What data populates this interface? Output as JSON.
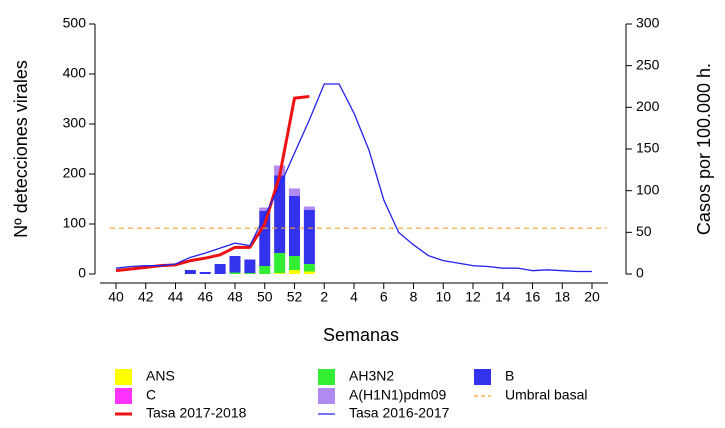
{
  "chart_data": {
    "type": "bar",
    "stacked": true,
    "xlabel": "Semanas",
    "ylabel": "Nº detecciones virales",
    "y2label": "Casos por 100.000 h.",
    "categories": [
      "40",
      null,
      "42",
      null,
      "44",
      null,
      "46",
      null,
      "48",
      null,
      "50",
      null,
      "52",
      null,
      "2",
      null,
      "4",
      null,
      "6",
      null,
      "8",
      null,
      "10",
      null,
      "12",
      null,
      "14",
      null,
      "16",
      null,
      "18",
      null,
      "20"
    ],
    "ylim": [
      0,
      500
    ],
    "yticks": [
      0,
      100,
      200,
      300,
      400,
      500
    ],
    "y2lim": [
      0,
      300
    ],
    "y2ticks": [
      0,
      50,
      100,
      150,
      200,
      250,
      300
    ],
    "series": [
      {
        "name": "ANS",
        "type": "bar",
        "color": "#ffff00",
        "values": [
          null,
          null,
          null,
          null,
          null,
          0,
          0,
          0,
          0,
          0,
          0,
          2,
          8,
          5,
          null,
          null,
          null,
          null,
          null,
          null,
          null,
          null,
          null,
          null,
          null,
          null,
          null,
          null,
          null,
          null,
          null,
          null,
          null
        ]
      },
      {
        "name": "C",
        "type": "bar",
        "color": "#ff33ff",
        "values": [
          null,
          null,
          null,
          null,
          null,
          0,
          0,
          0,
          0,
          0,
          0,
          0,
          0,
          0,
          null,
          null,
          null,
          null,
          null,
          null,
          null,
          null,
          null,
          null,
          null,
          null,
          null,
          null,
          null,
          null,
          null,
          null,
          null
        ]
      },
      {
        "name": "AH3N2",
        "type": "bar",
        "color": "#33ee33",
        "values": [
          null,
          null,
          null,
          null,
          null,
          0,
          0,
          0,
          3,
          2,
          16,
          40,
          28,
          15,
          null,
          null,
          null,
          null,
          null,
          null,
          null,
          null,
          null,
          null,
          null,
          null,
          null,
          null,
          null,
          null,
          null,
          null,
          null
        ]
      },
      {
        "name": "B",
        "type": "bar",
        "color": "#3333ee",
        "values": [
          null,
          null,
          null,
          null,
          null,
          8,
          4,
          20,
          33,
          27,
          110,
          155,
          120,
          108,
          null,
          null,
          null,
          null,
          null,
          null,
          null,
          null,
          null,
          null,
          null,
          null,
          null,
          null,
          null,
          null,
          null,
          null,
          null
        ]
      },
      {
        "name": "A(H1N1)pdm09",
        "type": "bar",
        "color": "#b08af0",
        "values": [
          null,
          null,
          null,
          null,
          null,
          0,
          0,
          0,
          0,
          0,
          7,
          20,
          15,
          7,
          null,
          null,
          null,
          null,
          null,
          null,
          null,
          null,
          null,
          null,
          null,
          null,
          null,
          null,
          null,
          null,
          null,
          null,
          null
        ]
      },
      {
        "name": "Tasa 2017-2018",
        "type": "line",
        "axis": "y2",
        "color": "#ee1111",
        "values": [
          4,
          6,
          8,
          10,
          11,
          16,
          19,
          23,
          32,
          32,
          60,
          118,
          211,
          213,
          null,
          null,
          null,
          null,
          null,
          null,
          null,
          null,
          null,
          null,
          null,
          null,
          null,
          null,
          null,
          null,
          null,
          null,
          null
        ]
      },
      {
        "name": "Tasa 2016-2017",
        "type": "line",
        "axis": "y2",
        "color": "#2222ee",
        "values": [
          7,
          9,
          10,
          10,
          12,
          20,
          25,
          31,
          37,
          34,
          70,
          105,
          145,
          185,
          228,
          228,
          193,
          149,
          89,
          50,
          35,
          22,
          16,
          13,
          10,
          9,
          7,
          7,
          4,
          5,
          4,
          3,
          3
        ]
      },
      {
        "name": "Umbral basal",
        "type": "hline",
        "axis": "y2",
        "color": "#f5a030",
        "dashed": true,
        "value": 55
      }
    ]
  }
}
